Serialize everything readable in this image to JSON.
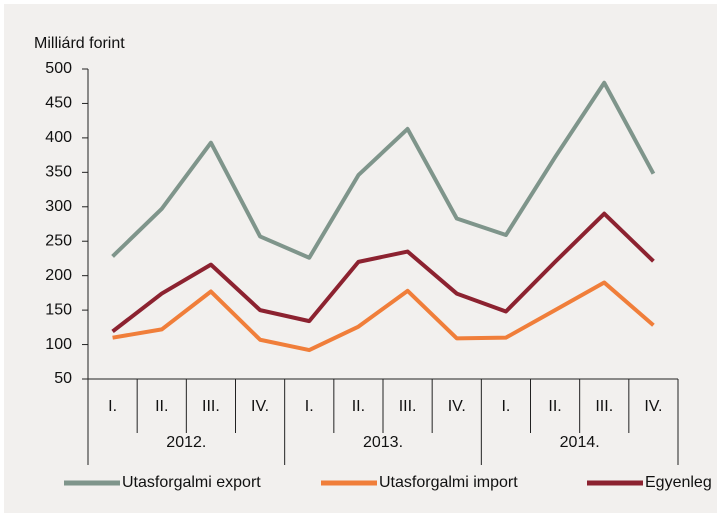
{
  "chart_data": {
    "type": "line",
    "ylabel": "Milliárd forint",
    "categories": [
      "I.",
      "II.",
      "III.",
      "IV.",
      "I.",
      "II.",
      "III.",
      "IV.",
      "I.",
      "II.",
      "III.",
      "IV."
    ],
    "groups": [
      "2012.",
      "2013.",
      "2014."
    ],
    "ylim": [
      50,
      500
    ],
    "yticks": [
      50,
      100,
      150,
      200,
      250,
      300,
      350,
      400,
      450,
      500
    ],
    "legend": "bottom",
    "series": [
      {
        "name": "Utasforgalmi export",
        "color": "#7f958b",
        "values": [
          228,
          297,
          393,
          257,
          226,
          346,
          413,
          283,
          259,
          372,
          480,
          348
        ]
      },
      {
        "name": "Utasforgalmi import",
        "color": "#f07e3a",
        "values": [
          110,
          122,
          177,
          107,
          92,
          126,
          178,
          109,
          110,
          150,
          190,
          128
        ]
      },
      {
        "name": "Egyenleg",
        "color": "#8c2230",
        "values": [
          119,
          174,
          216,
          150,
          134,
          220,
          235,
          174,
          148,
          220,
          290,
          221
        ]
      }
    ]
  }
}
